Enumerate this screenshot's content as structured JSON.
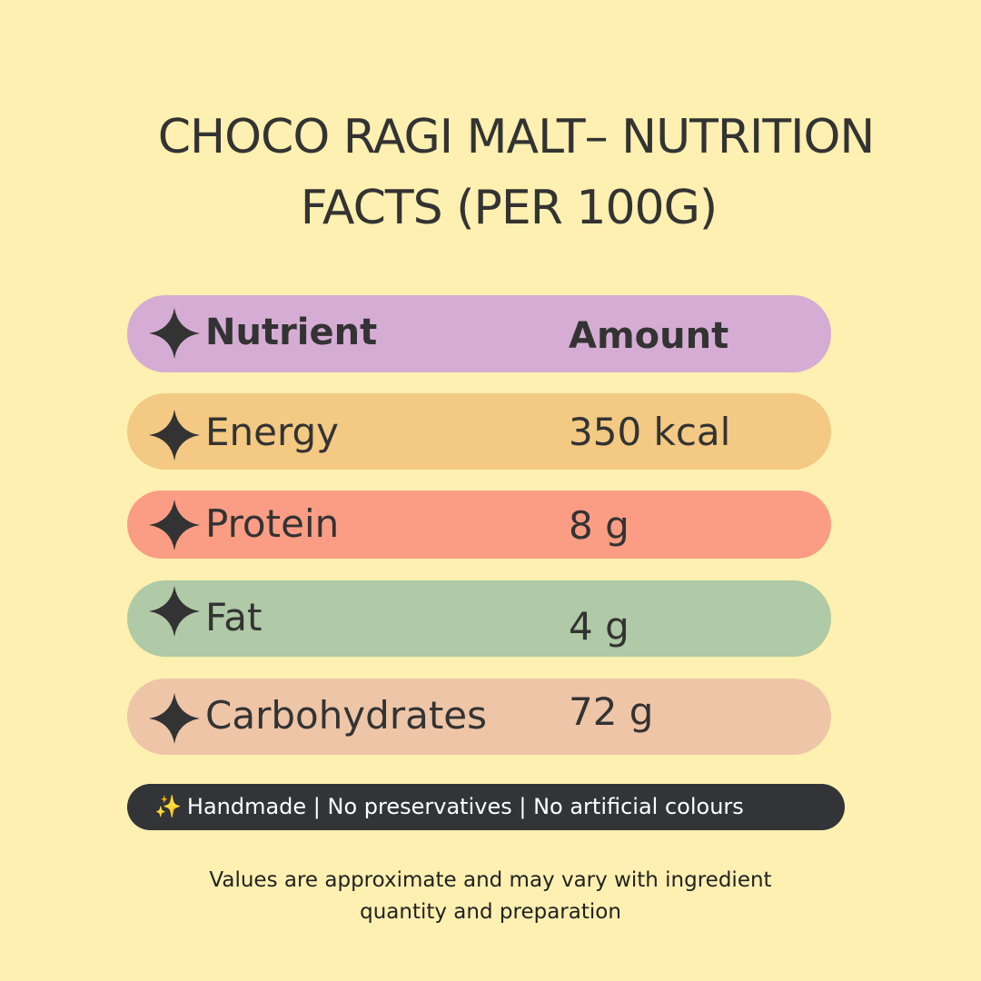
{
  "title": {
    "line1": "CHOCO RAGI MALT– NUTRITION",
    "line2": "FACTS (PER 100G)"
  },
  "table": {
    "header": {
      "nutrient": "Nutrient",
      "amount": "Amount"
    },
    "rows": [
      {
        "nutrient": "Energy",
        "amount": "350 kcal",
        "color": "#f3c983"
      },
      {
        "nutrient": "Protein",
        "amount": "8 g",
        "color": "#fb9d84"
      },
      {
        "nutrient": "Fat",
        "amount": "4 g",
        "color": "#b0c9a6"
      },
      {
        "nutrient": "Carbohydrates",
        "amount": "72 g",
        "color": "#eec5a7"
      }
    ],
    "header_color": "#d5acd3",
    "bullet_icon": "four-point-star-icon"
  },
  "badge": {
    "icon": "sparkles-icon",
    "text": "Handmade | No preservatives | No artificial colours"
  },
  "note": {
    "line1": "Values are approximate and may vary with ingredient",
    "line2": "quantity and preparation"
  },
  "colors": {
    "background": "#fdf0b0",
    "text": "#333333",
    "badge_background": "#333438"
  }
}
